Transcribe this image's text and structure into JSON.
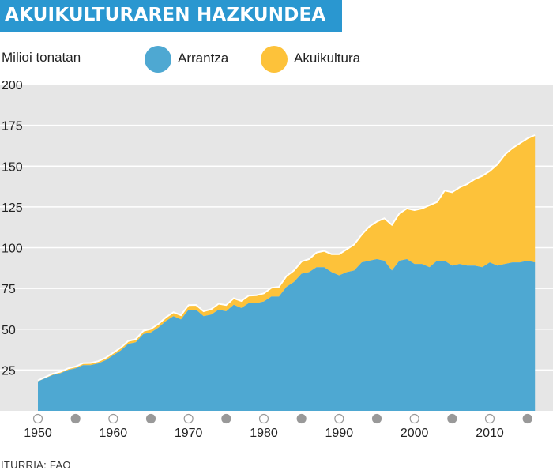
{
  "header": {
    "title": "AKUIKULTURAREN HAZKUNDEA"
  },
  "footer": {
    "source": "ITURRIA: FAO"
  },
  "colors": {
    "fishing": "#4ea8d2",
    "aquaculture": "#fdc23a",
    "title_bg": "#2a97d0",
    "plot_bg": "#e6e6e6",
    "tick_hollow": "#ffffff",
    "tick_filled": "#999999"
  },
  "chart_data": {
    "type": "area",
    "stacked": true,
    "ylabel": "Milioi tonatan",
    "xlabel": "",
    "ylim": [
      0,
      200
    ],
    "xlim": [
      1949,
      2017
    ],
    "yticks": [
      25,
      50,
      75,
      100,
      125,
      150,
      175,
      200
    ],
    "xticks": [
      1950,
      1960,
      1970,
      1980,
      1990,
      2000,
      2010
    ],
    "grid": true,
    "legend": "top",
    "x": [
      1950,
      1951,
      1952,
      1953,
      1954,
      1955,
      1956,
      1957,
      1958,
      1959,
      1960,
      1961,
      1962,
      1963,
      1964,
      1965,
      1966,
      1967,
      1968,
      1969,
      1970,
      1971,
      1972,
      1973,
      1974,
      1975,
      1976,
      1977,
      1978,
      1979,
      1980,
      1981,
      1982,
      1983,
      1984,
      1985,
      1986,
      1987,
      1988,
      1989,
      1990,
      1991,
      1992,
      1993,
      1994,
      1995,
      1996,
      1997,
      1998,
      1999,
      2000,
      2001,
      2002,
      2003,
      2004,
      2005,
      2006,
      2007,
      2008,
      2009,
      2010,
      2011,
      2012,
      2013,
      2014,
      2015,
      2016
    ],
    "series": [
      {
        "name": "Arrantza",
        "values": [
          18,
          20,
          22,
          23,
          25,
          26,
          28,
          28,
          29,
          31,
          34,
          37,
          41,
          42,
          47,
          48,
          51,
          55,
          58,
          56,
          62,
          62,
          58,
          59,
          62,
          61,
          65,
          63,
          66,
          66,
          67,
          70,
          70,
          76,
          79,
          84,
          85,
          88,
          88,
          85,
          83,
          85,
          86,
          91,
          92,
          93,
          92,
          86,
          92,
          93,
          90,
          90,
          88,
          92,
          92,
          89,
          90,
          89,
          89,
          88,
          91,
          89,
          90,
          91,
          91,
          92,
          91
        ]
      },
      {
        "name": "Akuikultura",
        "values": [
          0.6,
          0.7,
          0.8,
          0.9,
          1.0,
          1.1,
          1.2,
          1.3,
          1.4,
          1.5,
          1.6,
          1.7,
          1.8,
          1.9,
          2.0,
          2.1,
          2.2,
          2.3,
          2.4,
          2.6,
          2.8,
          2.9,
          3.0,
          3.3,
          3.6,
          3.8,
          4.0,
          4.3,
          4.6,
          4.8,
          5.0,
          5.4,
          6.0,
          6.5,
          7.0,
          7.5,
          8.0,
          9.0,
          10,
          11,
          13,
          14,
          16,
          17,
          21,
          23,
          26,
          28,
          29,
          31,
          33,
          34,
          38,
          36,
          43,
          45,
          47,
          50,
          53,
          56,
          56,
          62,
          67,
          70,
          73,
          75,
          78
        ]
      }
    ]
  }
}
